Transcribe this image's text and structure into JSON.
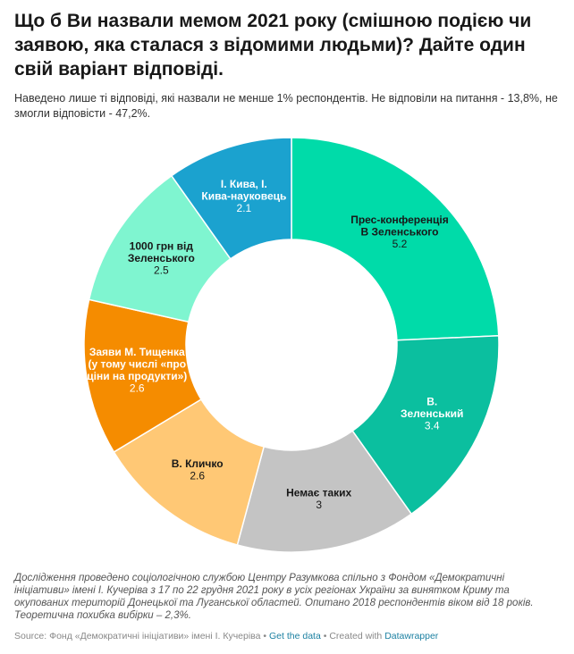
{
  "title": "Що б Ви назвали мемом 2021 року (смішною подією чи заявою, яка сталася з відомими людьми)? Дайте один свій варіант відповіді.",
  "subtitle": "Наведено лише ті відповіді, які назвали не менше 1% респондентів. Не відповіли на питання - 13,8%, не змогли відповісти - 47,2%.",
  "notes": "Дослідження проведено соціологічною службою Центру Разумкова спільно з Фондом «Демократичні ініціативи» імені І. Кучеріва з 17 по 22 грудня 2021 року в усіх регіонах України за винятком Криму та окупованих територій Донецької та Луганської областей. Опитано 2018 респондентів віком від 18 років. Теоретична похибка вибірки – 2,3%.",
  "footer": {
    "source": "Source: Фонд «Демократичні ініціативи» імені І. Кучеріва",
    "sep1": " • ",
    "get_data": "Get the data",
    "sep2": " • Created with ",
    "datawrapper": "Datawrapper"
  },
  "chart_data": {
    "type": "pie",
    "variant": "donut",
    "slices": [
      {
        "label": [
          "Прес-конференція",
          "В Зеленського"
        ],
        "value": 5.2,
        "value_label": "5.2",
        "color": "#00dba9",
        "text_color": "#181818"
      },
      {
        "label": [
          "В.",
          "Зеленський"
        ],
        "value": 3.4,
        "value_label": "3.4",
        "color": "#0bbf9f",
        "text_color": "#ffffff"
      },
      {
        "label": [
          "Немає таких"
        ],
        "value": 3,
        "value_label": "3",
        "color": "#c4c4c4",
        "text_color": "#181818"
      },
      {
        "label": [
          "В. Кличко"
        ],
        "value": 2.6,
        "value_label": "2.6",
        "color": "#ffc875",
        "text_color": "#181818"
      },
      {
        "label": [
          "Заяви М. Тищенка",
          "(у тому числі «про",
          "ціни на продукти»)"
        ],
        "value": 2.6,
        "value_label": "2.6",
        "color": "#f58c00",
        "text_color": "#ffffff"
      },
      {
        "label": [
          "1000 грн від",
          "Зеленського"
        ],
        "value": 2.5,
        "value_label": "2.5",
        "color": "#7ff5d0",
        "text_color": "#181818"
      },
      {
        "label": [
          "І. Кива, І.",
          "Кива-науковець"
        ],
        "value": 2.1,
        "value_label": "2.1",
        "color": "#1ba2cf",
        "text_color": "#ffffff"
      }
    ]
  }
}
